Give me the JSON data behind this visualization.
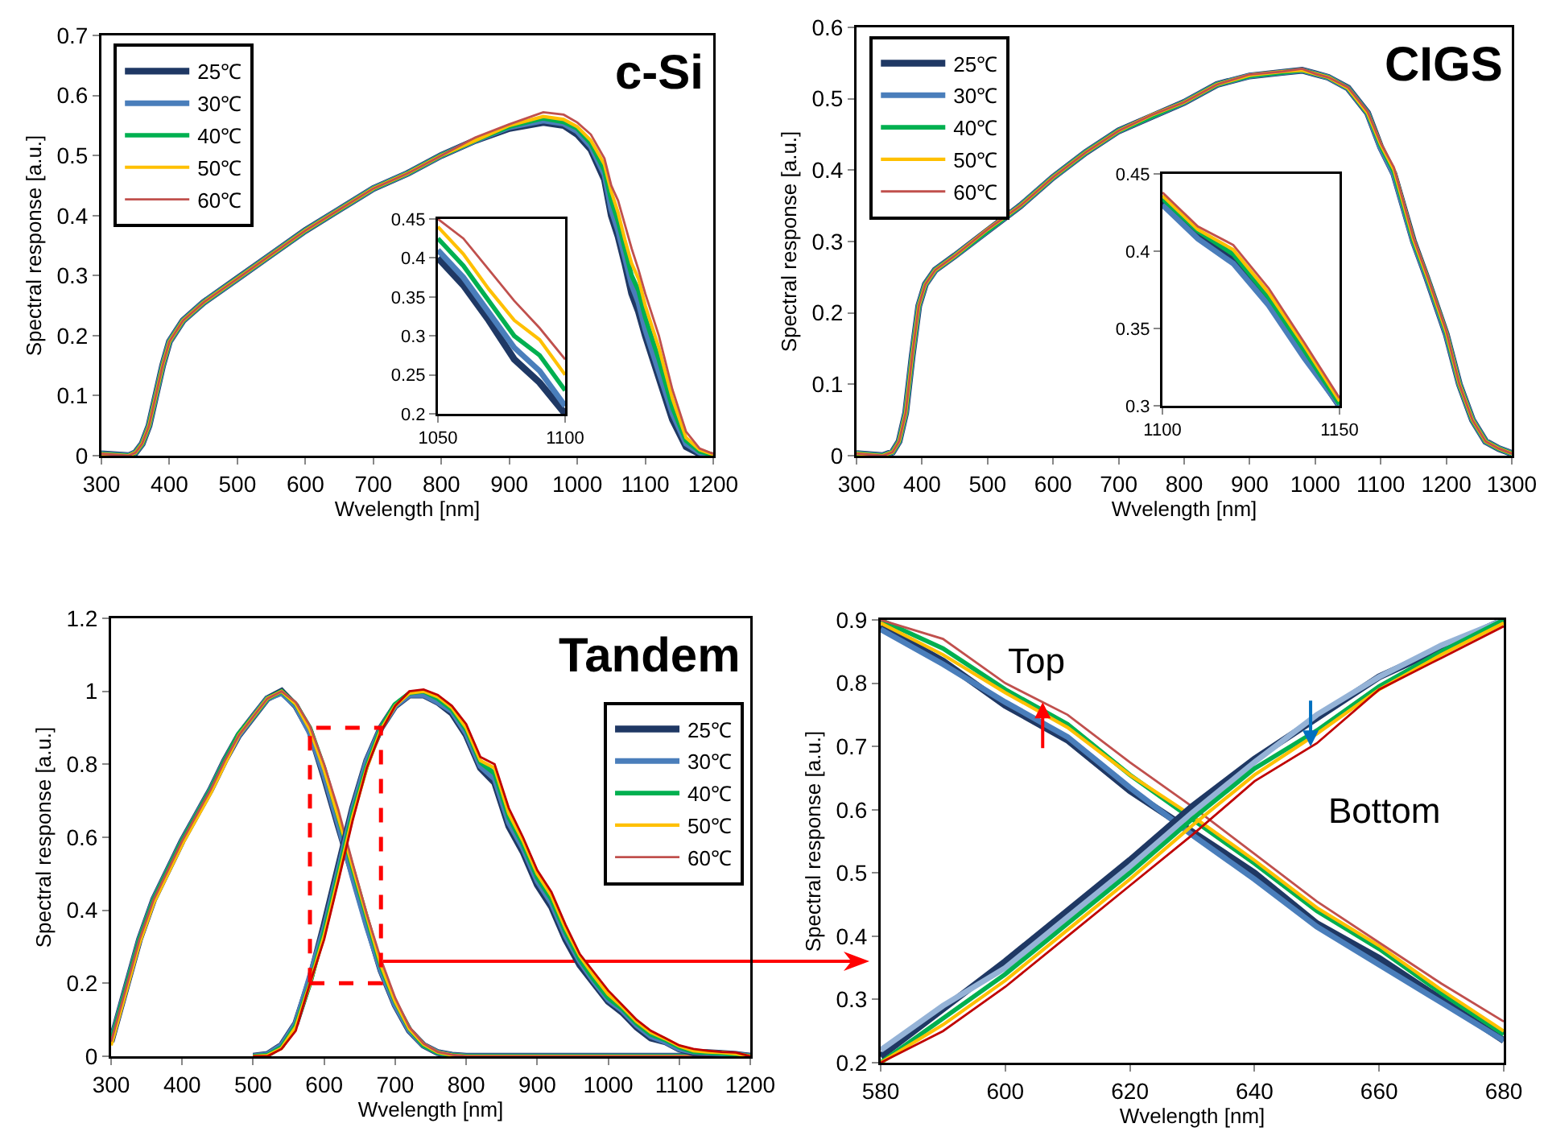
{
  "chart_data": [
    {
      "type": "line",
      "title": "c-Si",
      "xlabel": "Wvelength [nm]",
      "ylabel": "Spectral response [a.u.]",
      "legend": "top left",
      "xlim": [
        300,
        1200
      ],
      "ylim": [
        0,
        0.7
      ],
      "xticks": [
        300,
        400,
        500,
        600,
        700,
        800,
        900,
        1000,
        1100,
        1200
      ],
      "yticks": [
        0,
        0.1,
        0.2,
        0.3,
        0.4,
        0.5,
        0.6,
        0.7
      ],
      "x": [
        300,
        340,
        350,
        360,
        370,
        380,
        390,
        400,
        420,
        450,
        500,
        550,
        600,
        650,
        700,
        750,
        800,
        850,
        900,
        950,
        980,
        1000,
        1020,
        1040,
        1050,
        1060,
        1070,
        1080,
        1090,
        1100,
        1120,
        1140,
        1160,
        1180,
        1200
      ],
      "series": [
        {
          "name": "25℃",
          "color": "#1f3864",
          "values": [
            0.003,
            0,
            0.005,
            0.02,
            0.05,
            0.1,
            0.15,
            0.19,
            0.225,
            0.255,
            0.295,
            0.335,
            0.375,
            0.41,
            0.445,
            0.47,
            0.5,
            0.525,
            0.545,
            0.555,
            0.55,
            0.535,
            0.51,
            0.46,
            0.4,
            0.365,
            0.32,
            0.27,
            0.24,
            0.2,
            0.13,
            0.06,
            0.015,
            0.003,
            0
          ]
        },
        {
          "name": "30℃",
          "color": "#4a7ebb",
          "values": [
            0.003,
            0,
            0.005,
            0.02,
            0.05,
            0.1,
            0.15,
            0.19,
            0.225,
            0.255,
            0.295,
            0.335,
            0.375,
            0.41,
            0.445,
            0.47,
            0.5,
            0.525,
            0.547,
            0.558,
            0.553,
            0.54,
            0.515,
            0.468,
            0.41,
            0.375,
            0.33,
            0.285,
            0.255,
            0.21,
            0.14,
            0.07,
            0.02,
            0.005,
            0
          ]
        },
        {
          "name": "40℃",
          "color": "#00b050",
          "values": [
            0.003,
            0,
            0.005,
            0.02,
            0.05,
            0.1,
            0.15,
            0.19,
            0.225,
            0.255,
            0.295,
            0.335,
            0.375,
            0.41,
            0.445,
            0.47,
            0.5,
            0.525,
            0.548,
            0.562,
            0.556,
            0.545,
            0.52,
            0.475,
            0.425,
            0.39,
            0.345,
            0.3,
            0.275,
            0.23,
            0.16,
            0.08,
            0.025,
            0.007,
            0.001
          ]
        },
        {
          "name": "50℃",
          "color": "#ffc000",
          "values": [
            0.003,
            0,
            0.005,
            0.02,
            0.05,
            0.1,
            0.15,
            0.19,
            0.225,
            0.255,
            0.295,
            0.335,
            0.375,
            0.41,
            0.445,
            0.47,
            0.5,
            0.525,
            0.55,
            0.565,
            0.56,
            0.548,
            0.525,
            0.485,
            0.44,
            0.405,
            0.36,
            0.32,
            0.295,
            0.25,
            0.18,
            0.095,
            0.03,
            0.01,
            0.002
          ]
        },
        {
          "name": "60℃",
          "color": "#c0504d",
          "values": [
            0.003,
            0,
            0.005,
            0.02,
            0.05,
            0.1,
            0.15,
            0.19,
            0.225,
            0.255,
            0.295,
            0.335,
            0.375,
            0.41,
            0.445,
            0.47,
            0.5,
            0.53,
            0.552,
            0.572,
            0.568,
            0.555,
            0.535,
            0.495,
            0.45,
            0.425,
            0.385,
            0.345,
            0.31,
            0.27,
            0.2,
            0.11,
            0.04,
            0.012,
            0.003
          ]
        }
      ]
    },
    {
      "type": "line",
      "legend": false,
      "xlim": [
        1050,
        1100
      ],
      "ylim": [
        0.2,
        0.45
      ],
      "xticks": [
        1050,
        1100
      ],
      "yticks": [
        0.2,
        0.25,
        0.3,
        0.35,
        0.4,
        0.45
      ],
      "x": [
        1050,
        1060,
        1070,
        1080,
        1090,
        1100
      ],
      "series": [
        {
          "color": "#1f3864",
          "values": [
            0.4,
            0.365,
            0.32,
            0.27,
            0.24,
            0.2
          ]
        },
        {
          "color": "#4a7ebb",
          "values": [
            0.41,
            0.375,
            0.33,
            0.285,
            0.255,
            0.21
          ]
        },
        {
          "color": "#00b050",
          "values": [
            0.425,
            0.39,
            0.345,
            0.3,
            0.275,
            0.23
          ]
        },
        {
          "color": "#ffc000",
          "values": [
            0.44,
            0.405,
            0.36,
            0.32,
            0.295,
            0.25
          ]
        },
        {
          "color": "#c0504d",
          "values": [
            0.45,
            0.425,
            0.385,
            0.345,
            0.31,
            0.27
          ]
        }
      ]
    },
    {
      "type": "line",
      "title": "CIGS",
      "xlabel": "Wvelength [nm]",
      "ylabel": "Spectral response [a.u.]",
      "legend": "top left",
      "xlim": [
        300,
        1300
      ],
      "ylim": [
        0,
        0.6
      ],
      "xticks": [
        300,
        400,
        500,
        600,
        700,
        800,
        900,
        1000,
        1100,
        1200,
        1300
      ],
      "yticks": [
        0,
        0.1,
        0.2,
        0.3,
        0.4,
        0.5,
        0.6
      ],
      "x": [
        300,
        340,
        355,
        365,
        375,
        385,
        395,
        405,
        420,
        450,
        500,
        550,
        600,
        650,
        700,
        750,
        800,
        850,
        900,
        950,
        980,
        1000,
        1020,
        1050,
        1080,
        1100,
        1120,
        1150,
        1170,
        1200,
        1220,
        1240,
        1260,
        1280,
        1300
      ],
      "series": [
        {
          "name": "25℃",
          "color": "#1f3864",
          "values": [
            0.003,
            0,
            0.005,
            0.02,
            0.06,
            0.14,
            0.21,
            0.24,
            0.26,
            0.28,
            0.315,
            0.35,
            0.39,
            0.425,
            0.455,
            0.475,
            0.495,
            0.52,
            0.532,
            0.537,
            0.54,
            0.535,
            0.53,
            0.515,
            0.48,
            0.432,
            0.395,
            0.3,
            0.25,
            0.17,
            0.1,
            0.05,
            0.02,
            0.01,
            0.003
          ]
        },
        {
          "name": "30℃",
          "color": "#4a7ebb",
          "values": [
            0.003,
            0,
            0.005,
            0.02,
            0.06,
            0.14,
            0.21,
            0.24,
            0.26,
            0.28,
            0.315,
            0.35,
            0.39,
            0.425,
            0.455,
            0.475,
            0.495,
            0.52,
            0.532,
            0.537,
            0.54,
            0.535,
            0.53,
            0.515,
            0.48,
            0.431,
            0.394,
            0.299,
            0.25,
            0.17,
            0.1,
            0.05,
            0.02,
            0.01,
            0.003
          ]
        },
        {
          "name": "40℃",
          "color": "#00b050",
          "values": [
            0.003,
            0,
            0.005,
            0.02,
            0.06,
            0.14,
            0.21,
            0.24,
            0.26,
            0.28,
            0.315,
            0.35,
            0.39,
            0.425,
            0.455,
            0.475,
            0.495,
            0.52,
            0.532,
            0.537,
            0.54,
            0.535,
            0.53,
            0.515,
            0.48,
            0.434,
            0.398,
            0.301,
            0.252,
            0.172,
            0.1,
            0.05,
            0.02,
            0.01,
            0.003
          ]
        },
        {
          "name": "50℃",
          "color": "#ffc000",
          "values": [
            0.003,
            0,
            0.005,
            0.02,
            0.06,
            0.14,
            0.21,
            0.24,
            0.26,
            0.28,
            0.317,
            0.35,
            0.39,
            0.425,
            0.455,
            0.477,
            0.495,
            0.52,
            0.533,
            0.538,
            0.54,
            0.535,
            0.53,
            0.515,
            0.48,
            0.436,
            0.401,
            0.303,
            0.253,
            0.173,
            0.1,
            0.05,
            0.02,
            0.01,
            0.003
          ]
        },
        {
          "name": "60℃",
          "color": "#c0504d",
          "values": [
            0.003,
            0,
            0.005,
            0.02,
            0.06,
            0.14,
            0.21,
            0.24,
            0.26,
            0.28,
            0.317,
            0.35,
            0.39,
            0.425,
            0.455,
            0.477,
            0.495,
            0.52,
            0.534,
            0.538,
            0.542,
            0.535,
            0.53,
            0.516,
            0.482,
            0.438,
            0.404,
            0.305,
            0.255,
            0.175,
            0.1,
            0.05,
            0.02,
            0.01,
            0.003
          ]
        }
      ]
    },
    {
      "type": "line",
      "legend": false,
      "xlim": [
        1100,
        1150
      ],
      "ylim": [
        0.3,
        0.45
      ],
      "xticks": [
        1100,
        1150
      ],
      "yticks": [
        0.3,
        0.35,
        0.4,
        0.45
      ],
      "x": [
        1100,
        1110,
        1120,
        1130,
        1140,
        1150
      ],
      "series": [
        {
          "color": "#1f3864",
          "values": [
            0.432,
            0.411,
            0.396,
            0.369,
            0.334,
            0.3
          ]
        },
        {
          "color": "#4a7ebb",
          "values": [
            0.43,
            0.408,
            0.392,
            0.365,
            0.331,
            0.3
          ]
        },
        {
          "color": "#00b050",
          "values": [
            0.434,
            0.413,
            0.398,
            0.37,
            0.336,
            0.301
          ]
        },
        {
          "color": "#ffc000",
          "values": [
            0.436,
            0.414,
            0.401,
            0.373,
            0.339,
            0.303
          ]
        },
        {
          "color": "#c0504d",
          "values": [
            0.438,
            0.416,
            0.404,
            0.376,
            0.341,
            0.305
          ]
        }
      ]
    },
    {
      "type": "line",
      "title": "Tandem",
      "xlabel": "Wvelength [nm]",
      "ylabel": "Spectral response [a.u.]",
      "legend": "right",
      "xlim": [
        300,
        1200
      ],
      "ylim": [
        0,
        1.2
      ],
      "xticks": [
        300,
        400,
        500,
        600,
        700,
        800,
        900,
        1000,
        1100,
        1200
      ],
      "yticks": [
        0,
        0.2,
        0.4,
        0.6,
        0.8,
        1,
        1.2
      ],
      "series": [
        {
          "name": "25℃",
          "color": "#1f3864",
          "x": [
            300,
            320,
            340,
            360,
            380,
            400,
            420,
            440,
            460,
            480,
            500,
            520,
            540,
            560,
            580,
            600,
            620,
            640,
            660,
            680,
            700,
            720,
            740,
            760,
            780,
            800,
            1200
          ],
          "values": [
            0.04,
            0.18,
            0.32,
            0.43,
            0.51,
            0.59,
            0.66,
            0.73,
            0.81,
            0.88,
            0.93,
            0.98,
            1.0,
            0.96,
            0.89,
            0.765,
            0.63,
            0.5,
            0.365,
            0.235,
            0.14,
            0.07,
            0.03,
            0.01,
            0.003,
            0,
            0
          ]
        },
        {
          "name": "30℃",
          "color": "#4a7ebb",
          "x": [
            300,
            320,
            340,
            360,
            380,
            400,
            420,
            440,
            460,
            480,
            500,
            520,
            540,
            560,
            580,
            600,
            620,
            640,
            660,
            680,
            700,
            720,
            740,
            760,
            780,
            800,
            1200
          ],
          "values": [
            0.04,
            0.18,
            0.32,
            0.43,
            0.51,
            0.59,
            0.66,
            0.73,
            0.81,
            0.88,
            0.93,
            0.98,
            0.995,
            0.96,
            0.885,
            0.77,
            0.635,
            0.49,
            0.355,
            0.235,
            0.14,
            0.07,
            0.03,
            0.01,
            0.003,
            0,
            0
          ]
        },
        {
          "name": "40℃",
          "color": "#00b050",
          "x": [
            300,
            320,
            340,
            360,
            380,
            400,
            420,
            440,
            460,
            480,
            500,
            520,
            540,
            560,
            580,
            600,
            620,
            640,
            660,
            680,
            700,
            720,
            740,
            760,
            780,
            800,
            1200
          ],
          "values": [
            0.04,
            0.18,
            0.32,
            0.43,
            0.51,
            0.59,
            0.66,
            0.73,
            0.81,
            0.885,
            0.93,
            0.98,
            1.0,
            0.965,
            0.9,
            0.79,
            0.655,
            0.515,
            0.38,
            0.245,
            0.15,
            0.075,
            0.03,
            0.01,
            0.003,
            0,
            0
          ]
        },
        {
          "name": "50℃",
          "color": "#ffc000",
          "x": [
            300,
            320,
            340,
            360,
            380,
            400,
            420,
            440,
            460,
            480,
            500,
            520,
            540,
            560,
            580,
            600,
            620,
            640,
            660,
            680,
            700,
            720,
            740,
            760,
            780,
            800,
            1200
          ],
          "values": [
            0.03,
            0.17,
            0.31,
            0.42,
            0.5,
            0.58,
            0.65,
            0.72,
            0.8,
            0.88,
            0.93,
            0.98,
            1.0,
            0.965,
            0.895,
            0.785,
            0.655,
            0.52,
            0.385,
            0.25,
            0.15,
            0.075,
            0.033,
            0.011,
            0.003,
            0,
            0
          ]
        },
        {
          "name": "60℃",
          "color": "#c0504d",
          "x": [
            300,
            320,
            340,
            360,
            380,
            400,
            420,
            440,
            460,
            480,
            500,
            520,
            540,
            560,
            580,
            600,
            620,
            640,
            660,
            680,
            700,
            720,
            740,
            760,
            780,
            800,
            1200
          ],
          "values": [
            0.04,
            0.18,
            0.32,
            0.43,
            0.51,
            0.59,
            0.66,
            0.73,
            0.81,
            0.88,
            0.93,
            0.98,
            1.0,
            0.97,
            0.905,
            0.8,
            0.675,
            0.53,
            0.39,
            0.265,
            0.16,
            0.08,
            0.035,
            0.012,
            0.004,
            0,
            0
          ]
        },
        {
          "color": "#1f3864",
          "x": [
            500,
            520,
            540,
            560,
            580,
            600,
            620,
            640,
            660,
            680,
            700,
            720,
            740,
            760,
            780,
            800,
            820,
            840,
            860,
            880,
            900,
            920,
            940,
            960,
            980,
            1000,
            1020,
            1040,
            1060,
            1080,
            1100,
            1120,
            1140,
            1160,
            1180,
            1200
          ],
          "values": [
            0,
            0.005,
            0.03,
            0.09,
            0.21,
            0.36,
            0.52,
            0.68,
            0.81,
            0.9,
            0.96,
            0.99,
            0.99,
            0.97,
            0.94,
            0.88,
            0.79,
            0.75,
            0.63,
            0.56,
            0.47,
            0.41,
            0.32,
            0.25,
            0.2,
            0.15,
            0.12,
            0.08,
            0.05,
            0.04,
            0.02,
            0.01,
            0.01,
            0.008,
            0.005,
            0
          ]
        },
        {
          "color": "#4a7ebb",
          "x": [
            500,
            520,
            540,
            560,
            580,
            600,
            620,
            640,
            660,
            680,
            700,
            720,
            740,
            760,
            780,
            800,
            820,
            840,
            860,
            880,
            900,
            920,
            940,
            960,
            980,
            1000,
            1020,
            1040,
            1060,
            1080,
            1100,
            1120,
            1140,
            1160,
            1180,
            1200
          ],
          "values": [
            0,
            0.005,
            0.03,
            0.09,
            0.22,
            0.35,
            0.51,
            0.675,
            0.81,
            0.9,
            0.96,
            0.99,
            0.99,
            0.97,
            0.945,
            0.885,
            0.795,
            0.76,
            0.64,
            0.57,
            0.48,
            0.42,
            0.33,
            0.26,
            0.205,
            0.155,
            0.125,
            0.085,
            0.055,
            0.04,
            0.02,
            0.012,
            0.01,
            0.008,
            0.005,
            0
          ]
        },
        {
          "color": "#00b050",
          "x": [
            500,
            520,
            540,
            560,
            580,
            600,
            620,
            640,
            660,
            680,
            700,
            720,
            740,
            760,
            780,
            800,
            820,
            840,
            860,
            880,
            900,
            920,
            940,
            960,
            980,
            1000,
            1020,
            1040,
            1060,
            1080,
            1100,
            1120,
            1140,
            1160,
            1180,
            1200
          ],
          "values": [
            0,
            0.003,
            0.025,
            0.085,
            0.2,
            0.34,
            0.5,
            0.665,
            0.795,
            0.9,
            0.965,
            0.995,
            1.0,
            0.98,
            0.95,
            0.895,
            0.805,
            0.775,
            0.655,
            0.58,
            0.49,
            0.43,
            0.34,
            0.265,
            0.21,
            0.16,
            0.13,
            0.09,
            0.06,
            0.045,
            0.025,
            0.012,
            0.01,
            0.008,
            0.005,
            0
          ]
        },
        {
          "color": "#ffc000",
          "x": [
            500,
            520,
            540,
            560,
            580,
            600,
            620,
            640,
            660,
            680,
            700,
            720,
            740,
            760,
            780,
            800,
            820,
            840,
            860,
            880,
            900,
            920,
            940,
            960,
            980,
            1000,
            1020,
            1040,
            1060,
            1080,
            1100,
            1120,
            1140,
            1160,
            1180,
            1200
          ],
          "values": [
            0,
            0.002,
            0.022,
            0.08,
            0.2,
            0.33,
            0.49,
            0.655,
            0.79,
            0.895,
            0.96,
            0.995,
            1.0,
            0.985,
            0.955,
            0.9,
            0.81,
            0.79,
            0.665,
            0.59,
            0.5,
            0.44,
            0.35,
            0.275,
            0.22,
            0.17,
            0.135,
            0.095,
            0.065,
            0.048,
            0.028,
            0.015,
            0.012,
            0.01,
            0.007,
            0
          ]
        },
        {
          "color": "#c00000",
          "x": [
            500,
            520,
            540,
            560,
            580,
            600,
            620,
            640,
            660,
            680,
            700,
            720,
            740,
            760,
            780,
            800,
            820,
            840,
            860,
            880,
            900,
            920,
            940,
            960,
            980,
            1000,
            1020,
            1040,
            1060,
            1080,
            1100,
            1120,
            1140,
            1160,
            1180,
            1200
          ],
          "values": [
            0,
            0,
            0.02,
            0.07,
            0.2,
            0.32,
            0.48,
            0.645,
            0.79,
            0.89,
            0.96,
            1.0,
            1.005,
            0.99,
            0.96,
            0.91,
            0.82,
            0.8,
            0.68,
            0.6,
            0.51,
            0.45,
            0.36,
            0.28,
            0.23,
            0.18,
            0.14,
            0.1,
            0.07,
            0.05,
            0.03,
            0.02,
            0.015,
            0.012,
            0.01,
            0
          ]
        }
      ]
    },
    {
      "type": "line",
      "xlabel": "Wvelength [nm]",
      "ylabel": "Spectral response [a.u.]",
      "legend": false,
      "xlim": [
        580,
        680
      ],
      "ylim": [
        0.2,
        0.9
      ],
      "xticks": [
        580,
        600,
        620,
        640,
        660,
        680
      ],
      "yticks": [
        0.2,
        0.3,
        0.4,
        0.5,
        0.6,
        0.7,
        0.8,
        0.9
      ],
      "x": [
        580,
        590,
        600,
        610,
        620,
        630,
        640,
        650,
        660,
        670,
        680
      ],
      "annotations": [
        {
          "text": "Top",
          "x": 606,
          "y": 0.77
        },
        {
          "text": "Bottom",
          "x": 649,
          "y": 0.7
        }
      ],
      "series": [
        {
          "color": "#1f3864",
          "values": [
            0.89,
            0.835,
            0.765,
            0.71,
            0.63,
            0.565,
            0.5,
            0.42,
            0.365,
            0.3,
            0.235
          ]
        },
        {
          "color": "#4a7ebb",
          "values": [
            0.885,
            0.83,
            0.77,
            0.715,
            0.635,
            0.56,
            0.49,
            0.415,
            0.355,
            0.295,
            0.235
          ]
        },
        {
          "color": "#00b050",
          "values": [
            0.9,
            0.855,
            0.79,
            0.735,
            0.655,
            0.585,
            0.515,
            0.44,
            0.38,
            0.31,
            0.245
          ]
        },
        {
          "color": "#ffc000",
          "values": [
            0.895,
            0.845,
            0.785,
            0.73,
            0.655,
            0.59,
            0.52,
            0.445,
            0.385,
            0.315,
            0.25
          ]
        },
        {
          "color": "#c0504d",
          "values": [
            0.9,
            0.87,
            0.8,
            0.75,
            0.675,
            0.605,
            0.53,
            0.455,
            0.39,
            0.325,
            0.265
          ]
        },
        {
          "color": "#1f3864",
          "values": [
            0.21,
            0.285,
            0.36,
            0.44,
            0.52,
            0.605,
            0.68,
            0.745,
            0.81,
            0.855,
            0.9
          ]
        },
        {
          "color": "#95b3d7",
          "values": [
            0.22,
            0.29,
            0.35,
            0.43,
            0.51,
            0.595,
            0.675,
            0.75,
            0.81,
            0.86,
            0.9
          ]
        },
        {
          "color": "#00b050",
          "values": [
            0.2,
            0.27,
            0.34,
            0.42,
            0.5,
            0.585,
            0.665,
            0.725,
            0.795,
            0.85,
            0.9
          ]
        },
        {
          "color": "#ffc000",
          "values": [
            0.2,
            0.26,
            0.33,
            0.41,
            0.49,
            0.575,
            0.655,
            0.72,
            0.79,
            0.845,
            0.895
          ]
        },
        {
          "color": "#c00000",
          "values": [
            0.2,
            0.25,
            0.32,
            0.4,
            0.48,
            0.56,
            0.645,
            0.705,
            0.79,
            0.84,
            0.89
          ]
        }
      ]
    }
  ]
}
